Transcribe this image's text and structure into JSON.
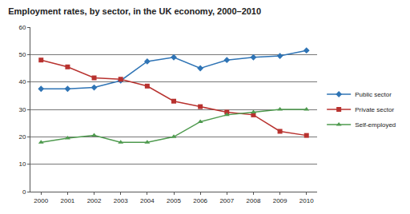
{
  "chart_data": {
    "type": "line",
    "title": "Employment rates, by sector, in the UK economy, 2000–2010",
    "x": [
      2000,
      2001,
      2002,
      2003,
      2004,
      2005,
      2006,
      2007,
      2008,
      2009,
      2010
    ],
    "series": [
      {
        "name": "Public sector",
        "color": "#2f74b5",
        "marker": "diamond",
        "line_style": "solid",
        "values": [
          37.5,
          37.5,
          38,
          40.5,
          47.5,
          49,
          45,
          48,
          49,
          49.5,
          51.5
        ]
      },
      {
        "name": "Private sector",
        "color": "#b8322f",
        "marker": "square",
        "line_style": "solid",
        "values": [
          48,
          45.5,
          41.5,
          41,
          38.5,
          33,
          31,
          29,
          28,
          22,
          20.5
        ]
      },
      {
        "name": "Self-employed",
        "color": "#4e9a4e",
        "marker": "triangle-up",
        "line_style": "solid",
        "values": [
          18,
          19.5,
          20.5,
          18,
          18,
          20,
          25.5,
          28,
          29,
          30,
          30
        ]
      }
    ],
    "xlim": [
      1999.6,
      2010.4
    ],
    "xticks": [
      2000,
      2001,
      2002,
      2003,
      2004,
      2005,
      2006,
      2007,
      2008,
      2009,
      2010
    ],
    "ylim": [
      0,
      60
    ],
    "yticks": [
      0,
      10,
      20,
      30,
      40,
      50,
      60
    ],
    "grid": true,
    "legend": "right"
  }
}
